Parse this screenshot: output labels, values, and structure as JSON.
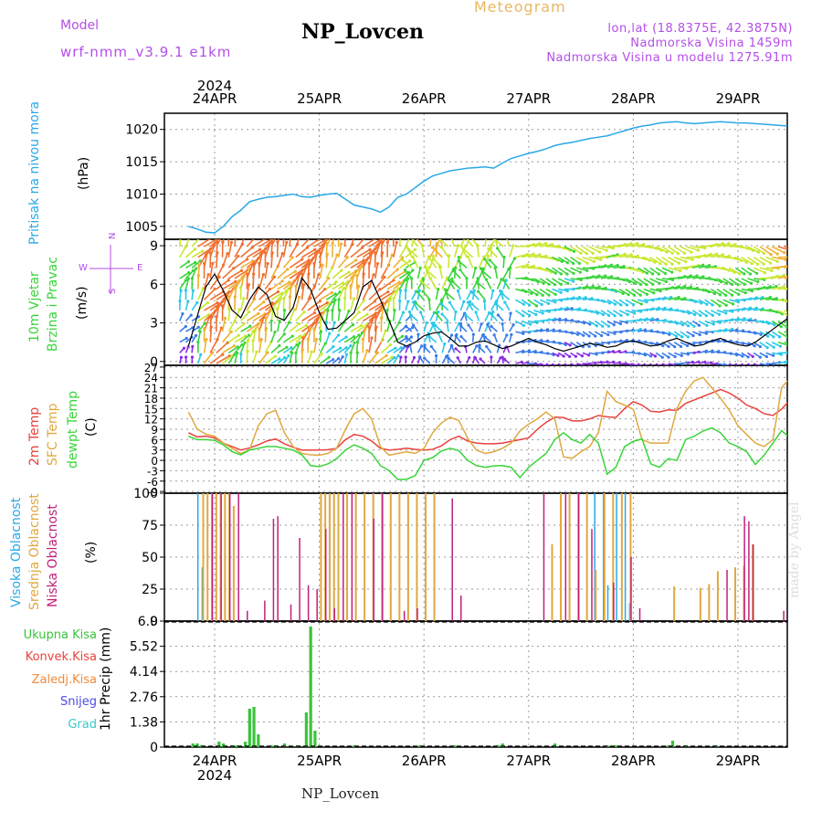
{
  "header": {
    "title": "NP_Lovcen",
    "meteogram": "Meteogram",
    "model_label": "Model",
    "model_version": "wrf-nmm_v3.9.1 e1km",
    "lonlat": "lon,lat (18.8375E, 42.3875N)",
    "altitude": "Nadmorska Visina 1459m",
    "model_altitude": "Nadmorska Visina u modelu 1275.91m"
  },
  "footer": {
    "name": "NP_Lovcen",
    "made_by": "made by Angel"
  },
  "axis": {
    "year_top": "2024",
    "year_bottom": "2024",
    "day_labels": [
      "24APR",
      "25APR",
      "26APR",
      "27APR",
      "28APR",
      "29APR"
    ]
  },
  "labels": {
    "pressure_name": "Pritisak na nivou mora",
    "pressure_unit": "(hPa)",
    "wind_name1": "10m Vjetar",
    "wind_name2": "Brzina i Pravac",
    "wind_unit": "(m/s)",
    "compass_n": "N",
    "compass_s": "S",
    "compass_e": "E",
    "compass_w": "W",
    "temp_name1": "2m Temp",
    "temp_name2": "SFC Temp",
    "temp_name3": "dewpt Temp",
    "temp_unit": "(C)",
    "cloud_name1": "Visoka Oblacnost",
    "cloud_name2": "Srednja Oblacnost",
    "cloud_name3": "Niska Oblacnost",
    "cloud_unit": "(%)",
    "precip_unit": "1hr Precip (mm)",
    "precip_legend": [
      "Ukupna Kisa",
      "Konvek.Kisa",
      "Zaledj.Kisa",
      "Snijeg",
      "Grad"
    ]
  },
  "colors": {
    "pressure": "#2aa8e6",
    "temp2m": "#e8423c",
    "tempsfc": "#e0a840",
    "dewpt": "#3ad43a",
    "cloud_high": "#2aa8e6",
    "cloud_mid": "#e0a840",
    "cloud_low": "#c0207a",
    "precip_total": "#3ac43a",
    "precip_conv": "#e8423c",
    "precip_frz": "#f08a3a",
    "precip_snow": "#4c4ce8",
    "precip_hail": "#3ac8c8",
    "meta": "#b44ee8",
    "wind_label": "#3ad43a",
    "compass": "#b44ee8"
  },
  "chart_data": [
    {
      "type": "line",
      "panel": "pressure",
      "ylim": [
        1003,
        1022.5
      ],
      "yticks": [
        1005,
        1010,
        1015,
        1020
      ],
      "x": [
        0,
        2,
        4,
        6,
        8,
        10,
        12,
        14,
        16,
        18,
        20,
        22,
        24,
        26,
        28,
        30,
        32,
        34,
        36,
        38,
        40,
        42,
        44,
        46,
        48,
        50,
        52,
        54,
        56,
        58,
        60,
        62,
        64,
        66,
        68,
        70,
        72,
        74,
        76,
        78,
        80,
        82,
        84,
        86,
        88,
        90,
        92,
        94,
        96,
        98,
        100,
        102,
        104,
        106,
        108,
        110,
        112,
        114,
        116,
        118,
        120,
        122,
        124,
        126,
        128,
        130,
        132,
        134,
        136,
        138,
        140
      ],
      "series": [
        {
          "values": [
            1005,
            1004.6,
            1004.1,
            1004,
            1005,
            1006.5,
            1007.5,
            1008.8,
            1009.2,
            1009.5,
            1009.6,
            1009.8,
            1010,
            1009.6,
            1009.5,
            1009.8,
            1010,
            1010.1,
            1009.2,
            1008.3,
            1008,
            1007.7,
            1007.2,
            1008,
            1009.5,
            1010,
            1011,
            1012,
            1012.8,
            1013.2,
            1013.6,
            1013.8,
            1014,
            1014.1,
            1014.2,
            1014,
            1014.8,
            1015.5,
            1015.9,
            1016.3,
            1016.6,
            1017,
            1017.5,
            1017.8,
            1018,
            1018.3,
            1018.6,
            1018.8,
            1019,
            1019.4,
            1019.8,
            1020.2,
            1020.5,
            1020.7,
            1021,
            1021.1,
            1021.2,
            1021,
            1020.9,
            1021,
            1021.1,
            1021.2,
            1021.1,
            1021,
            1021,
            1020.9,
            1020.8,
            1020.7,
            1020.6,
            1020.5,
            1020.5
          ]
        }
      ]
    },
    {
      "type": "line",
      "panel": "wind",
      "ylim": [
        -0.3,
        9.5
      ],
      "yticks": [
        0,
        3,
        6,
        9
      ],
      "x": [
        0,
        2,
        4,
        6,
        8,
        10,
        12,
        14,
        16,
        18,
        20,
        22,
        24,
        26,
        28,
        30,
        32,
        34,
        36,
        38,
        40,
        42,
        44,
        46,
        48,
        50,
        52,
        54,
        56,
        58,
        60,
        62,
        64,
        66,
        68,
        70,
        72,
        74,
        76,
        78,
        80,
        82,
        84,
        86,
        88,
        90,
        92,
        94,
        96,
        98,
        100,
        102,
        104,
        106,
        108,
        110,
        112,
        114,
        116,
        118,
        120,
        122,
        124,
        126,
        128,
        130,
        132,
        134,
        136,
        138,
        140
      ],
      "series": [
        {
          "values": [
            1.2,
            3.5,
            5.8,
            6.8,
            5.5,
            4,
            3.4,
            4.8,
            5.8,
            5.2,
            3.5,
            3.2,
            4.2,
            6.5,
            5.6,
            3.8,
            2.5,
            2.6,
            3.2,
            3.8,
            5.8,
            6.3,
            4.8,
            3.2,
            1.5,
            1.2,
            1.5,
            2,
            2.2,
            2.3,
            1.8,
            1.2,
            1.2,
            1.5,
            1.6,
            1.3,
            1,
            1.2,
            1.5,
            1.8,
            1.5,
            1.3,
            1,
            0.8,
            1,
            1.2,
            1.4,
            1.3,
            1.1,
            1.2,
            1.5,
            1.6,
            1.4,
            1.2,
            1.3,
            1.6,
            1.8,
            1.5,
            1.2,
            1.3,
            1.6,
            1.8,
            1.5,
            1.3,
            1.2,
            1.5,
            2,
            2.5,
            3,
            3.5,
            3.8
          ]
        }
      ]
    },
    {
      "type": "line",
      "panel": "temperature",
      "ylim": [
        -9.5,
        27.5
      ],
      "yticks": [
        -9,
        -6,
        -3,
        0,
        3,
        6,
        9,
        12,
        15,
        18,
        21,
        24,
        27
      ],
      "x": [
        0,
        2,
        4,
        6,
        8,
        10,
        12,
        14,
        16,
        18,
        20,
        22,
        24,
        26,
        28,
        30,
        32,
        34,
        36,
        38,
        40,
        42,
        44,
        46,
        48,
        50,
        52,
        54,
        56,
        58,
        60,
        62,
        64,
        66,
        68,
        70,
        72,
        74,
        76,
        78,
        80,
        82,
        84,
        86,
        88,
        90,
        92,
        94,
        96,
        98,
        100,
        102,
        104,
        106,
        108,
        110,
        112,
        114,
        116,
        118,
        120,
        122,
        124,
        126,
        128,
        130,
        132,
        134,
        136,
        138,
        140
      ],
      "series": [
        {
          "name": "2m Temp",
          "values": [
            8,
            6.8,
            7,
            6.5,
            5,
            4,
            3,
            3.6,
            4.5,
            5.6,
            6.2,
            4.8,
            3.8,
            3,
            3,
            3,
            3.1,
            3.5,
            6,
            7.5,
            7,
            5.6,
            3.5,
            3,
            3.2,
            3.5,
            3.2,
            3,
            3.2,
            4.2,
            6,
            7,
            5.6,
            5,
            4.8,
            4.8,
            5,
            5.5,
            6,
            6.5,
            9,
            11,
            12.5,
            12.4,
            11.4,
            11.4,
            12,
            13,
            12.6,
            12.4,
            15,
            17,
            16,
            14.2,
            14,
            14.6,
            14.5,
            16.5,
            17.5,
            18.5,
            19.5,
            20.5,
            19.5,
            18,
            16,
            15,
            13.5,
            13,
            14.8,
            17.6,
            17
          ]
        },
        {
          "name": "SFC Temp",
          "values": [
            14,
            9,
            7.6,
            7,
            5,
            3.5,
            2,
            3,
            10,
            13.5,
            14.5,
            8,
            4,
            2,
            1.6,
            1.5,
            2,
            3.6,
            9,
            13.5,
            15,
            12,
            4,
            1.5,
            2,
            2.5,
            2,
            3.5,
            8,
            10.8,
            12.5,
            11.5,
            6.5,
            3,
            2,
            2.5,
            3.5,
            5,
            8.5,
            10.5,
            12,
            14,
            12,
            1,
            0.6,
            2.5,
            4,
            8,
            20,
            17,
            16,
            14.8,
            6,
            5,
            5,
            5,
            15,
            20,
            23,
            24,
            21,
            18,
            14.5,
            10,
            7.5,
            5,
            4,
            6,
            21,
            24,
            22.4
          ]
        },
        {
          "name": "dewpt Temp",
          "values": [
            7,
            6,
            6,
            5.8,
            4.5,
            2.5,
            1.6,
            3,
            3.5,
            4,
            4,
            3.5,
            3,
            1.6,
            -1.5,
            -1.8,
            -1,
            0.5,
            3,
            4.5,
            3.5,
            2,
            -1.5,
            -3,
            -5.5,
            -5.5,
            -4.4,
            0,
            0.8,
            2.7,
            3.5,
            2.8,
            0,
            -1.5,
            -2,
            -1.6,
            -1.5,
            -2,
            -5,
            -2,
            0,
            2,
            6,
            8,
            6,
            5,
            7.5,
            5,
            -4,
            -2,
            4,
            5.5,
            6.2,
            -1,
            -2,
            0.5,
            0,
            6,
            7,
            8.5,
            9.4,
            8,
            5,
            4,
            2.5,
            -1.2,
            1.5,
            5,
            8.6,
            6.4,
            6
          ]
        }
      ]
    },
    {
      "type": "bar",
      "panel": "cloud",
      "ylim": [
        0,
        100
      ],
      "yticks": [
        0,
        25,
        50,
        75,
        100
      ],
      "series": [
        {
          "name": "Visoka Oblacnost",
          "bars": [
            [
              2,
              100
            ],
            [
              3,
              42
            ],
            [
              93,
              100
            ],
            [
              95,
              100
            ],
            [
              96,
              28
            ],
            [
              98,
              100
            ],
            [
              100,
              100
            ],
            [
              101,
              14
            ]
          ]
        },
        {
          "name": "Srednja Oblacnost",
          "bars": [
            [
              3,
              100
            ],
            [
              4,
              100
            ],
            [
              5,
              100
            ],
            [
              6,
              100
            ],
            [
              7,
              100
            ],
            [
              8,
              100
            ],
            [
              9,
              100
            ],
            [
              10,
              90
            ],
            [
              30,
              100
            ],
            [
              31,
              100
            ],
            [
              32,
              100
            ],
            [
              33,
              100
            ],
            [
              34,
              100
            ],
            [
              36,
              100
            ],
            [
              38,
              100
            ],
            [
              40,
              100
            ],
            [
              42,
              100
            ],
            [
              44,
              100
            ],
            [
              46,
              100
            ],
            [
              48,
              100
            ],
            [
              50,
              100
            ],
            [
              52,
              100
            ],
            [
              54,
              100
            ],
            [
              56,
              100
            ],
            [
              83,
              60
            ],
            [
              85,
              100
            ],
            [
              87,
              100
            ],
            [
              89,
              100
            ],
            [
              91,
              100
            ],
            [
              93,
              40
            ],
            [
              95,
              100
            ],
            [
              97,
              100
            ],
            [
              99,
              100
            ],
            [
              101,
              100
            ],
            [
              111,
              27
            ],
            [
              117,
              26
            ],
            [
              119,
              29
            ],
            [
              121,
              39
            ],
            [
              125,
              42
            ],
            [
              127,
              43
            ],
            [
              129,
              60
            ]
          ]
        },
        {
          "name": "Niska Oblacnost",
          "bars": [
            [
              5,
              100
            ],
            [
              7,
              100
            ],
            [
              9,
              100
            ],
            [
              11,
              100
            ],
            [
              13,
              8
            ],
            [
              17,
              16
            ],
            [
              19,
              80
            ],
            [
              20,
              82
            ],
            [
              23,
              13
            ],
            [
              25,
              65
            ],
            [
              27,
              28
            ],
            [
              29,
              25
            ],
            [
              31,
              72
            ],
            [
              33,
              10
            ],
            [
              35,
              100
            ],
            [
              37,
              100
            ],
            [
              42,
              80
            ],
            [
              44,
              100
            ],
            [
              49,
              8
            ],
            [
              52,
              10
            ],
            [
              60,
              96
            ],
            [
              62,
              20
            ],
            [
              81,
              100
            ],
            [
              86,
              100
            ],
            [
              89,
              100
            ],
            [
              92,
              72
            ],
            [
              97,
              30
            ],
            [
              101,
              50
            ],
            [
              103,
              10
            ],
            [
              123,
              40
            ],
            [
              127,
              82
            ],
            [
              128,
              78
            ],
            [
              129,
              60
            ],
            [
              136,
              8
            ],
            [
              184,
              9
            ]
          ]
        }
      ]
    },
    {
      "type": "bar",
      "panel": "precipitation",
      "ylim": [
        0,
        6.9
      ],
      "yticks": [
        0,
        1.38,
        2.76,
        4.14,
        5.52,
        6.9
      ],
      "series": [
        {
          "name": "Ukupna Kisa",
          "bars": [
            [
              1,
              0.2
            ],
            [
              2,
              0.2
            ],
            [
              3,
              0.1
            ],
            [
              7,
              0.3
            ],
            [
              8,
              0.2
            ],
            [
              10,
              0.1
            ],
            [
              11,
              0.1
            ],
            [
              13,
              0.3
            ],
            [
              14,
              2.1
            ],
            [
              15,
              2.2
            ],
            [
              16,
              0.7
            ],
            [
              19,
              0.1
            ],
            [
              20,
              0.1
            ],
            [
              22,
              0.2
            ],
            [
              25,
              0.1
            ],
            [
              27,
              1.9
            ],
            [
              28,
              6.6
            ],
            [
              29,
              0.9
            ],
            [
              38,
              0.1
            ],
            [
              53,
              0.1
            ],
            [
              61,
              0.1
            ],
            [
              71,
              0.1
            ],
            [
              72,
              0.2
            ],
            [
              84,
              0.2
            ],
            [
              96,
              0.1
            ],
            [
              98,
              0.1
            ],
            [
              110,
              0.1
            ],
            [
              111,
              0.35
            ],
            [
              114,
              0.1
            ],
            [
              121,
              0.1
            ],
            [
              140,
              0.1
            ]
          ]
        }
      ]
    }
  ]
}
